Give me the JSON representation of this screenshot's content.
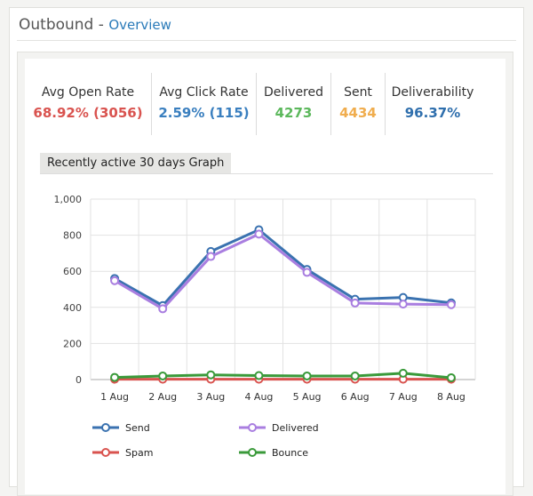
{
  "header": {
    "title": "Outbound",
    "separator": "-",
    "link": "Overview"
  },
  "stats": [
    {
      "label": "Avg Open Rate",
      "value": "68.92% (3056)",
      "color": "#d9534f"
    },
    {
      "label": "Avg Click Rate",
      "value": "2.59% (115)",
      "color": "#3a7fbf"
    },
    {
      "label": "Delivered",
      "value": "4273",
      "color": "#5cb85c"
    },
    {
      "label": "Sent",
      "value": "4434",
      "color": "#f0ad4e"
    },
    {
      "label": "Deliverability",
      "value": "96.37%",
      "color": "#2f6fad"
    }
  ],
  "tab": {
    "label": "Recently active 30 days Graph"
  },
  "chart_data": {
    "type": "line",
    "categories": [
      "1 Aug",
      "2 Aug",
      "3 Aug",
      "4 Aug",
      "5 Aug",
      "6 Aug",
      "7 Aug",
      "8 Aug"
    ],
    "ylim": [
      0,
      1000
    ],
    "yticks": [
      "0",
      "200",
      "400",
      "600",
      "800",
      "1,000"
    ],
    "yticks_values": [
      0,
      200,
      400,
      600,
      800,
      1000
    ],
    "grid": true,
    "legend_position": "bottom",
    "series": [
      {
        "name": "Send",
        "color": "#3a72b0",
        "values": [
          560,
          410,
          710,
          830,
          610,
          445,
          455,
          425
        ]
      },
      {
        "name": "Delivered",
        "color": "#a97ee0",
        "values": [
          548,
          392,
          682,
          806,
          594,
          424,
          418,
          415
        ]
      },
      {
        "name": "Spam",
        "color": "#d9534f",
        "values": [
          2,
          2,
          2,
          2,
          2,
          2,
          2,
          2
        ]
      },
      {
        "name": "Bounce",
        "color": "#3a9a3a",
        "values": [
          12,
          20,
          26,
          22,
          20,
          20,
          35,
          10
        ]
      }
    ]
  }
}
